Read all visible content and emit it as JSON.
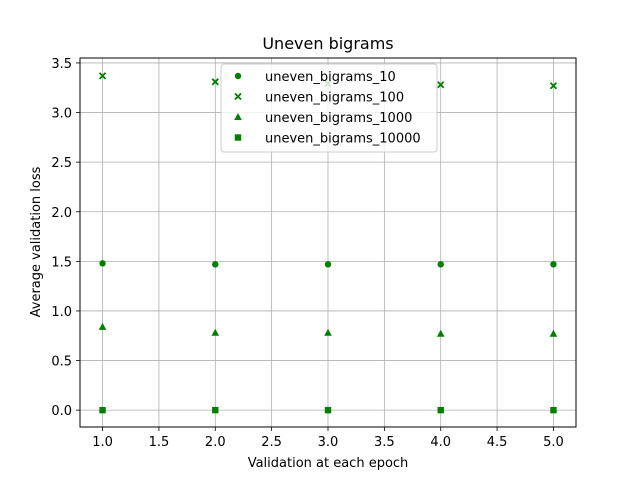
{
  "chart_data": {
    "type": "scatter",
    "title": "Uneven bigrams",
    "xlabel": "Validation at each epoch",
    "ylabel": "Average validation loss",
    "xlim": [
      0.8,
      5.2
    ],
    "ylim": [
      -0.17,
      3.55
    ],
    "x_ticks": [
      "1.0",
      "1.5",
      "2.0",
      "2.5",
      "3.0",
      "3.5",
      "4.0",
      "4.5",
      "5.0"
    ],
    "y_ticks": [
      "0.0",
      "0.5",
      "1.0",
      "1.5",
      "2.0",
      "2.5",
      "3.0",
      "3.5"
    ],
    "grid": true,
    "legend_position": "upper center",
    "marker_color": "#008000",
    "x": [
      1,
      2,
      3,
      4,
      5
    ],
    "series": [
      {
        "name": "uneven_bigrams_10",
        "marker": "circle",
        "values": [
          1.48,
          1.47,
          1.47,
          1.47,
          1.47
        ]
      },
      {
        "name": "uneven_bigrams_100",
        "marker": "x",
        "values": [
          3.37,
          3.31,
          3.29,
          3.28,
          3.27
        ]
      },
      {
        "name": "uneven_bigrams_1000",
        "marker": "triangle",
        "values": [
          0.84,
          0.78,
          0.78,
          0.77,
          0.77
        ]
      },
      {
        "name": "uneven_bigrams_10000",
        "marker": "square",
        "values": [
          0.0,
          0.0,
          0.0,
          0.0,
          0.0
        ]
      }
    ]
  }
}
